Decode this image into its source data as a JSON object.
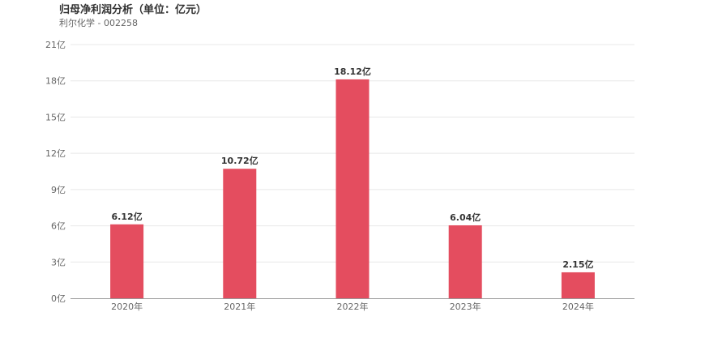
{
  "header": {
    "title": "归母净利润分析（单位：亿元）",
    "subtitle": "利尔化学 - 002258"
  },
  "colors": {
    "bar": "#e44d5f",
    "grid": "#e8e8e8",
    "axis": "#999999"
  },
  "chart_data": {
    "type": "bar",
    "title": "归母净利润分析（单位：亿元）",
    "subtitle": "利尔化学 - 002258",
    "categories": [
      "2020年",
      "2021年",
      "2022年",
      "2023年",
      "2024年"
    ],
    "values": [
      6.12,
      10.72,
      18.12,
      6.04,
      2.15
    ],
    "data_labels": [
      "6.12亿",
      "10.72亿",
      "18.12亿",
      "6.04亿",
      "2.15亿"
    ],
    "yticks": [
      0,
      3,
      6,
      9,
      12,
      15,
      18,
      21
    ],
    "ytick_labels": [
      "0亿",
      "3亿",
      "6亿",
      "9亿",
      "12亿",
      "15亿",
      "18亿",
      "21亿"
    ],
    "ylim": [
      0,
      21
    ],
    "xlabel": "",
    "ylabel": "",
    "grid": true,
    "legend": false
  }
}
